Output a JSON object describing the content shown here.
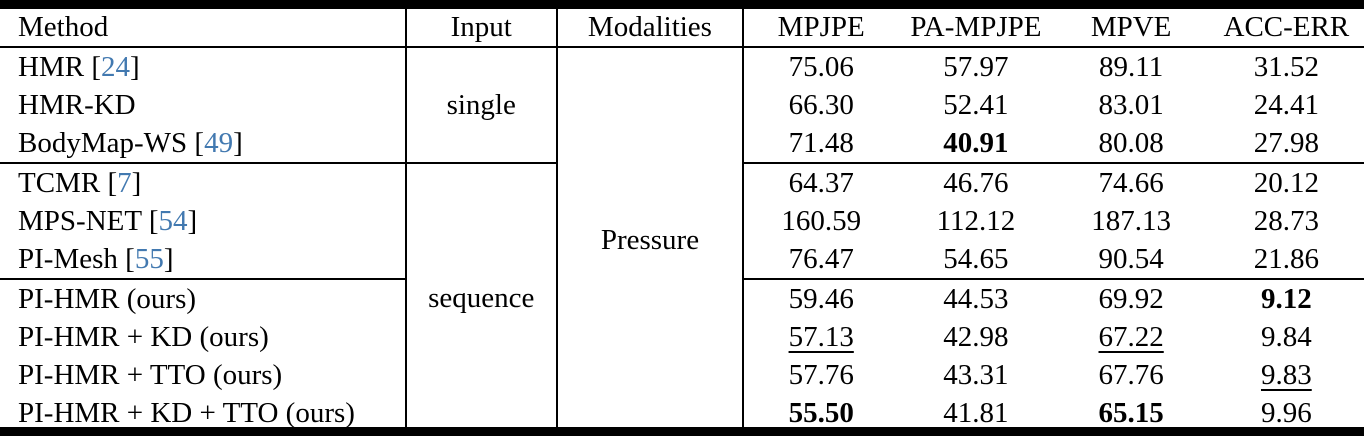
{
  "table": {
    "columns": [
      "Method",
      "Input",
      "Modalities",
      "MPJPE",
      "PA-MPJPE",
      "MPVE",
      "ACC-ERR"
    ],
    "modalities_value": "Pressure",
    "input_groups": [
      {
        "label": "single",
        "row_count": 3
      },
      {
        "label": "sequence",
        "row_count": 7
      }
    ],
    "separators_after_rows": [
      2,
      5
    ],
    "rows": [
      {
        "method": "HMR",
        "citation": "24",
        "values": [
          "75.06",
          "57.97",
          "89.11",
          "31.52"
        ],
        "marks": [
          "",
          "",
          "",
          ""
        ]
      },
      {
        "method": "HMR-KD",
        "citation": "",
        "values": [
          "66.30",
          "52.41",
          "83.01",
          "24.41"
        ],
        "marks": [
          "",
          "",
          "",
          ""
        ]
      },
      {
        "method": "BodyMap-WS",
        "citation": "49",
        "values": [
          "71.48",
          "40.91",
          "80.08",
          "27.98"
        ],
        "marks": [
          "",
          "bold",
          "",
          ""
        ]
      },
      {
        "method": "TCMR",
        "citation": "7",
        "values": [
          "64.37",
          "46.76",
          "74.66",
          "20.12"
        ],
        "marks": [
          "",
          "",
          "",
          ""
        ]
      },
      {
        "method": "MPS-NET",
        "citation": "54",
        "values": [
          "160.59",
          "112.12",
          "187.13",
          "28.73"
        ],
        "marks": [
          "",
          "",
          "",
          ""
        ]
      },
      {
        "method": "PI-Mesh",
        "citation": "55",
        "values": [
          "76.47",
          "54.65",
          "90.54",
          "21.86"
        ],
        "marks": [
          "",
          "",
          "",
          ""
        ]
      },
      {
        "method": "PI-HMR (ours)",
        "citation": "",
        "values": [
          "59.46",
          "44.53",
          "69.92",
          "9.12"
        ],
        "marks": [
          "",
          "",
          "",
          "bold"
        ]
      },
      {
        "method": "PI-HMR + KD (ours)",
        "citation": "",
        "values": [
          "57.13",
          "42.98",
          "67.22",
          "9.84"
        ],
        "marks": [
          "underline",
          "",
          "underline",
          ""
        ]
      },
      {
        "method": "PI-HMR + TTO (ours)",
        "citation": "",
        "values": [
          "57.76",
          "43.31",
          "67.76",
          "9.83"
        ],
        "marks": [
          "",
          "",
          "",
          "underline"
        ]
      },
      {
        "method": "PI-HMR + KD + TTO (ours)",
        "citation": "",
        "values": [
          "55.50",
          "41.81",
          "65.15",
          "9.96"
        ],
        "marks": [
          "bold",
          "underline",
          "bold",
          ""
        ]
      }
    ]
  },
  "colors": {
    "citation_blue": "#4279b0",
    "rule_black": "#000000"
  }
}
